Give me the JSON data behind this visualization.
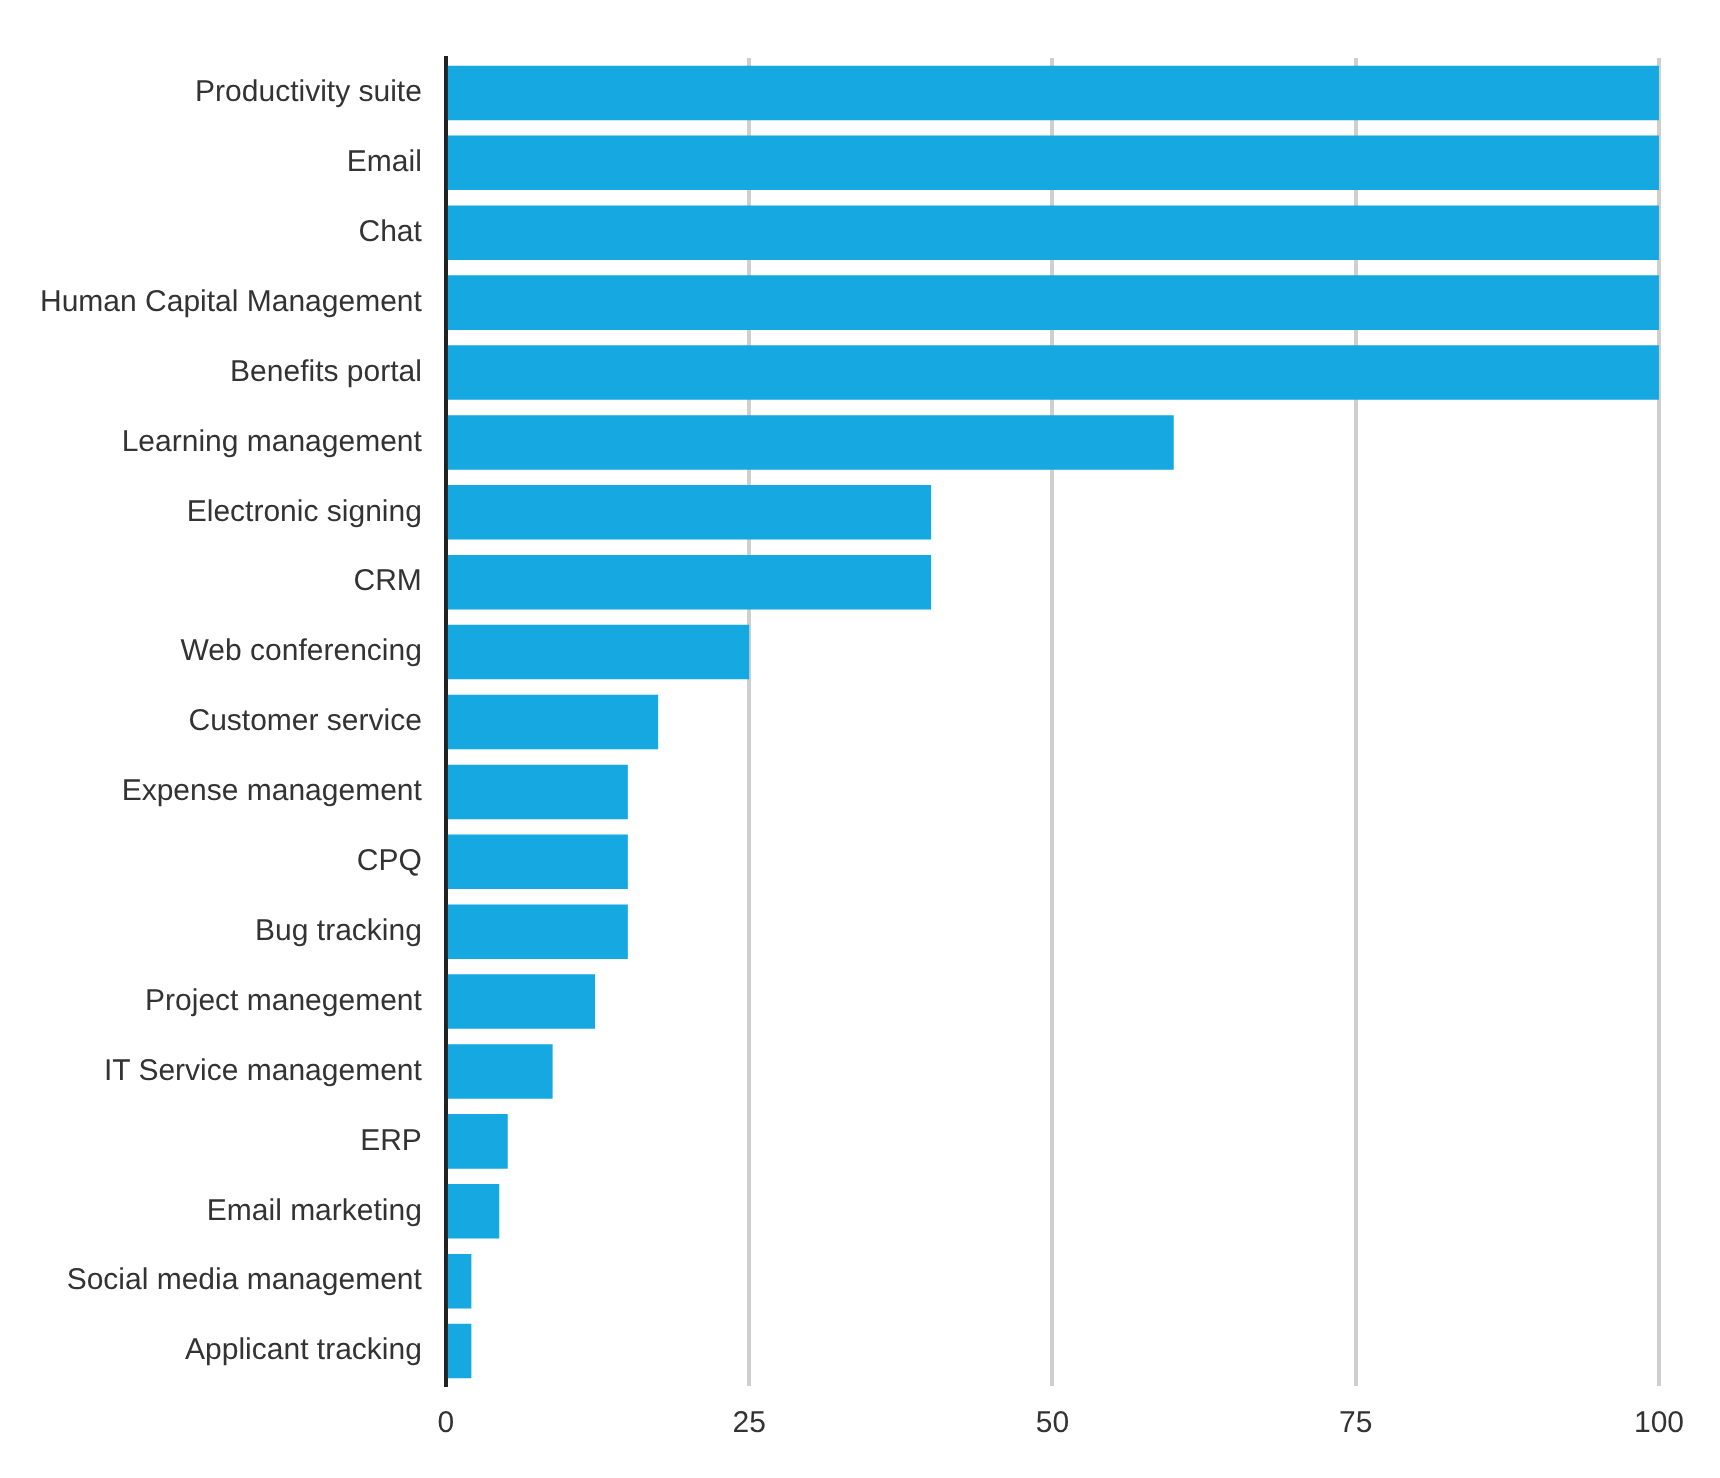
{
  "chart_data": {
    "type": "bar",
    "orientation": "horizontal",
    "categories": [
      "Productivity suite",
      "Email",
      "Chat",
      "Human Capital Management",
      "Benefits portal",
      "Learning management",
      "Electronic signing",
      "CRM",
      "Web conferencing",
      "Customer service",
      "Expense management",
      "CPQ",
      "Bug tracking",
      "Project manegement",
      "IT Service management",
      "ERP",
      "Email marketing",
      "Social media management",
      "Applicant tracking"
    ],
    "values": [
      100,
      100,
      100,
      100,
      100,
      60,
      40,
      40,
      25,
      17.5,
      15,
      15,
      15,
      12.3,
      8.8,
      5.1,
      4.4,
      2.1,
      2.1
    ],
    "color": "#16a8e0",
    "xlim": [
      0,
      100
    ],
    "xticks": [
      0,
      25,
      50,
      75,
      100
    ],
    "grid": "x",
    "legend": false
  }
}
